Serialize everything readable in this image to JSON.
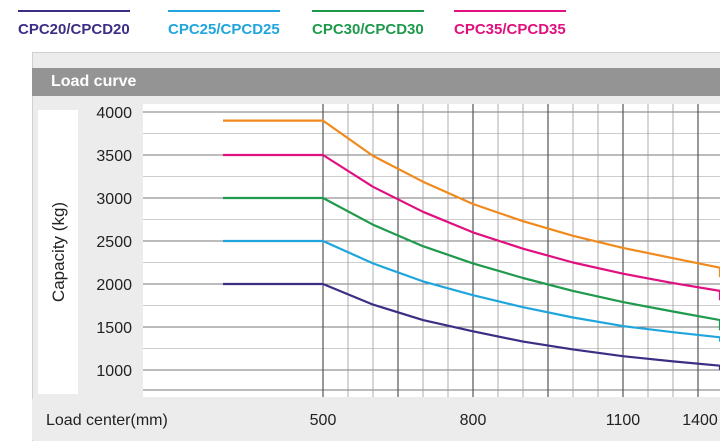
{
  "legend": [
    {
      "label": "CPC20/CPCD20",
      "color": "#3b2e84"
    },
    {
      "label": "CPC25/CPCD25",
      "color": "#20a6dc"
    },
    {
      "label": "CPC30/CPCD30",
      "color": "#1f9a4c"
    },
    {
      "label": "CPC35/CPCD35",
      "color": "#e0107f"
    }
  ],
  "panel": {
    "title": "Load curve"
  },
  "chart_data": {
    "type": "line",
    "title": "Load curve",
    "xlabel": "Load center(mm)",
    "ylabel": "Capacity (kg)",
    "xlim": [
      300,
      1450
    ],
    "ylim": [
      850,
      4100
    ],
    "x_ticks": [
      500,
      800,
      1100,
      1400
    ],
    "y_ticks": [
      1000,
      1500,
      2000,
      2500,
      3000,
      3500,
      4000
    ],
    "grid": true,
    "legend_position": "top",
    "x": [
      300,
      500,
      600,
      700,
      800,
      900,
      1000,
      1100,
      1200,
      1300,
      1400,
      1450
    ],
    "series": [
      {
        "name": "CPC20/CPCD20",
        "color": "#3b2e84",
        "values": [
          2000,
          2000,
          1760,
          1580,
          1450,
          1330,
          1240,
          1160,
          1100,
          1050,
          1010,
          1000
        ]
      },
      {
        "name": "CPC25/CPCD25",
        "color": "#20a6dc",
        "values": [
          2500,
          2500,
          2240,
          2030,
          1870,
          1730,
          1610,
          1510,
          1440,
          1380,
          1345,
          1330
        ]
      },
      {
        "name": "CPC30/CPCD30",
        "color": "#1f9a4c",
        "values": [
          3000,
          3000,
          2690,
          2440,
          2240,
          2070,
          1920,
          1790,
          1680,
          1580,
          1490,
          1460
        ]
      },
      {
        "name": "CPC35/CPCD35",
        "color": "#e0107f",
        "values": [
          3500,
          3500,
          3130,
          2840,
          2600,
          2410,
          2250,
          2120,
          2010,
          1920,
          1840,
          1810
        ]
      },
      {
        "name": "",
        "color": "#f08a1c",
        "values": [
          3900,
          3900,
          3490,
          3190,
          2930,
          2730,
          2560,
          2420,
          2300,
          2190,
          2110,
          2080
        ]
      }
    ]
  }
}
